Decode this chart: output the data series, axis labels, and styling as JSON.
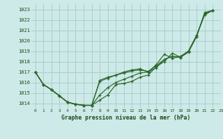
{
  "title": "Graphe pression niveau de la mer (hPa)",
  "bg_color": "#cde9e8",
  "grid_color": "#a8d0ce",
  "line_color": "#2d6629",
  "text_color": "#1a4a1a",
  "xlim": [
    -0.5,
    23
  ],
  "ylim": [
    1013.5,
    1023.5
  ],
  "yticks": [
    1014,
    1015,
    1016,
    1017,
    1018,
    1019,
    1020,
    1021,
    1022,
    1023
  ],
  "xticks": [
    0,
    1,
    2,
    3,
    4,
    5,
    6,
    7,
    8,
    9,
    10,
    11,
    12,
    13,
    14,
    15,
    16,
    17,
    18,
    19,
    20,
    21,
    22,
    23
  ],
  "line1": [
    1017.0,
    1015.8,
    1015.3,
    1014.7,
    1014.1,
    1013.9,
    1013.8,
    1013.8,
    1014.3,
    1014.8,
    1015.8,
    1015.9,
    1016.1,
    1016.5,
    1016.7,
    1017.5,
    1018.0,
    1018.8,
    1018.4,
    1018.9,
    1020.4,
    1022.7,
    1022.9,
    null
  ],
  "line2": [
    1017.0,
    1015.8,
    1015.3,
    1014.7,
    1014.1,
    1013.9,
    1013.8,
    1013.8,
    1014.8,
    1015.5,
    1016.0,
    1016.3,
    1016.6,
    1016.9,
    1017.0,
    1017.4,
    1018.2,
    1018.5,
    1018.4,
    1019.0,
    1020.4,
    1022.6,
    1022.9,
    null
  ],
  "line3": [
    1017.0,
    1015.8,
    1015.3,
    1014.7,
    1014.1,
    1013.9,
    1013.8,
    1013.8,
    1016.1,
    1016.4,
    1016.7,
    1016.9,
    1017.1,
    1017.2,
    1017.05,
    1017.6,
    1018.2,
    1018.5,
    1018.4,
    1019.0,
    1020.5,
    1022.5,
    1022.9,
    null
  ],
  "line4": [
    1017.0,
    1015.8,
    1015.3,
    1014.7,
    1014.1,
    1013.9,
    1013.8,
    1013.8,
    1016.2,
    1016.5,
    1016.7,
    1017.0,
    1017.2,
    1017.3,
    1017.0,
    1017.7,
    1018.7,
    1018.3,
    1018.5,
    1019.0,
    1020.5,
    1022.5,
    1022.9,
    null
  ]
}
